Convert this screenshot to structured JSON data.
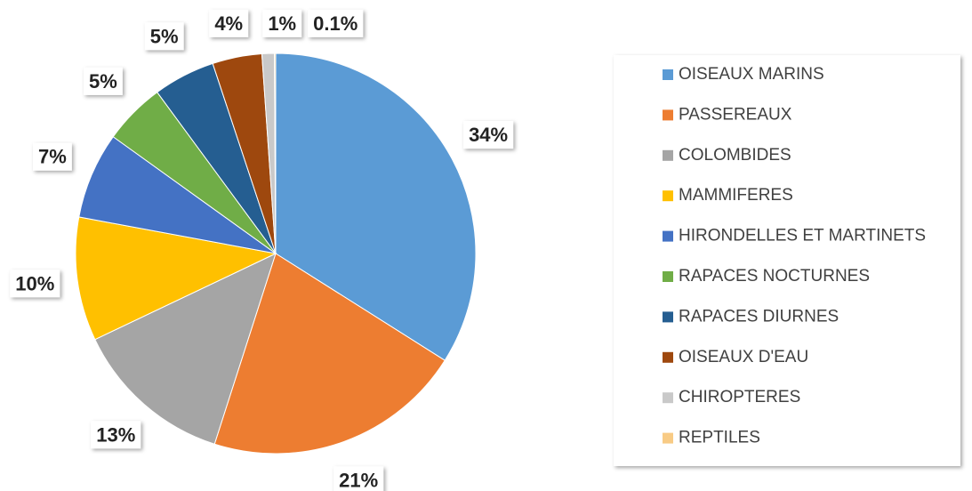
{
  "chart_data": {
    "type": "pie",
    "categories": [
      "OISEAUX MARINS",
      "PASSEREAUX",
      "COLOMBIDES",
      "MAMMIFERES",
      "HIRONDELLES ET MARTINETS",
      "RAPACES NOCTURNES",
      "RAPACES DIURNES",
      "OISEAUX D'EAU",
      "CHIROPTERES",
      "REPTILES"
    ],
    "values": [
      34,
      21,
      13,
      10,
      7,
      5,
      5,
      4,
      1,
      0.1
    ],
    "value_labels": [
      "34%",
      "21%",
      "13%",
      "10%",
      "7%",
      "5%",
      "5%",
      "4%",
      "1%",
      "0.1%"
    ],
    "colors": [
      "#5b9bd5",
      "#ed7d31",
      "#a5a5a5",
      "#ffc000",
      "#4472c4",
      "#70ad47",
      "#255e91",
      "#9e480e",
      "#c9c9c9",
      "#f8cb85"
    ],
    "legend": "right"
  }
}
